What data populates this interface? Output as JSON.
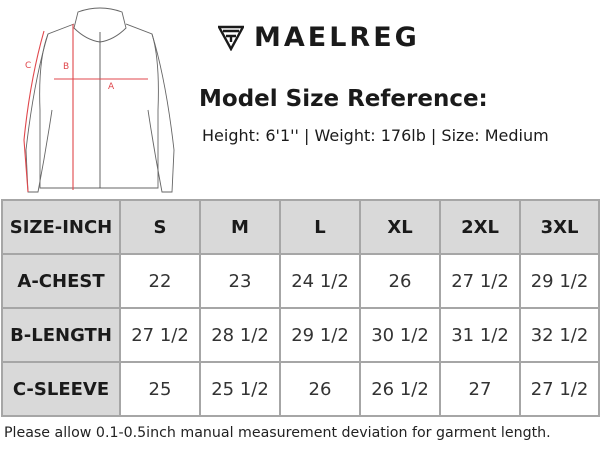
{
  "brand": {
    "name": "MAELREG"
  },
  "diagram": {
    "labels": {
      "a": "A",
      "b": "B",
      "c": "C"
    }
  },
  "model": {
    "title": "Model Size Reference:",
    "info": "Height: 6'1'' | Weight: 176lb | Size: Medium"
  },
  "table": {
    "header": [
      "SIZE-INCH",
      "S",
      "M",
      "L",
      "XL",
      "2XL",
      "3XL"
    ],
    "rows": [
      {
        "label": "A-CHEST",
        "values": [
          "22",
          "23",
          "24 1/2",
          "26",
          "27 1/2",
          "29 1/2"
        ]
      },
      {
        "label": "B-LENGTH",
        "values": [
          "27 1/2",
          "28 1/2",
          "29 1/2",
          "30 1/2",
          "31 1/2",
          "32 1/2"
        ]
      },
      {
        "label": "C-SLEEVE",
        "values": [
          "25",
          "25 1/2",
          "26",
          "26 1/2",
          "27",
          "27 1/2"
        ]
      }
    ]
  },
  "note": "Please allow 0.1-0.5inch manual measurement deviation for garment length.",
  "colors": {
    "header_fill": "#d9d9d9",
    "border": "#a6a6a6",
    "measure_line": "#e0474c"
  }
}
